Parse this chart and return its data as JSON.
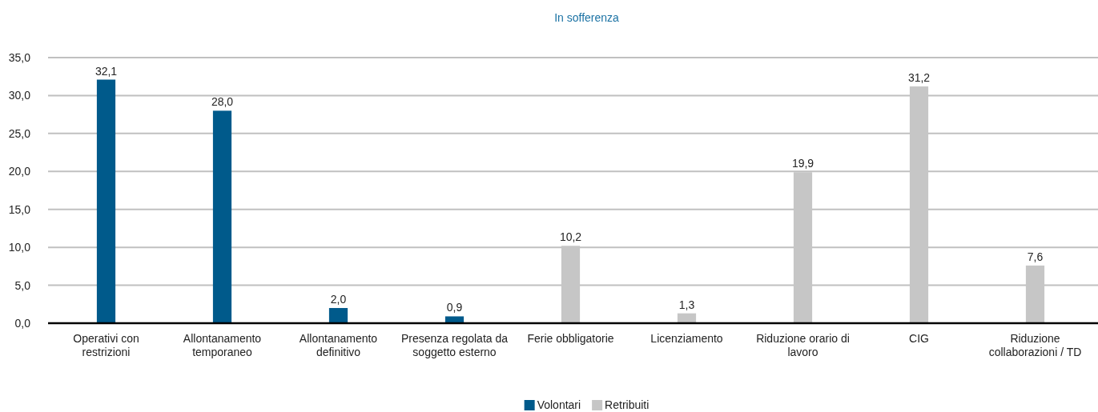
{
  "chart_data": {
    "type": "bar",
    "title": "In sofferenza",
    "categories": [
      "Operativi con restrizioni",
      "Allontanamento temporaneo",
      "Allontanamento definitivo",
      "Presenza regolata da soggetto esterno",
      "Ferie obbligatorie",
      "Licenziamento",
      "Riduzione orario di lavoro",
      "CIG",
      "Riduzione collaborazioni / TD"
    ],
    "series": [
      {
        "name": "Volontari",
        "color": "#005a8b",
        "values": [
          32.1,
          28.0,
          2.0,
          0.9,
          null,
          null,
          null,
          null,
          null
        ],
        "value_labels": [
          "32,1",
          "28,0",
          "2,0",
          "0,9",
          null,
          null,
          null,
          null,
          null
        ]
      },
      {
        "name": "Retribuiti",
        "color": "#c6c6c6",
        "values": [
          null,
          null,
          null,
          null,
          10.2,
          1.3,
          19.9,
          31.2,
          7.6
        ],
        "value_labels": [
          null,
          null,
          null,
          null,
          "10,2",
          "1,3",
          "19,9",
          "31,2",
          "7,6"
        ]
      }
    ],
    "stacked": true,
    "ylim": [
      0,
      35
    ],
    "yticks": [
      {
        "value": 0,
        "label": "0,0"
      },
      {
        "value": 5,
        "label": "5,0"
      },
      {
        "value": 10,
        "label": "10,0"
      },
      {
        "value": 15,
        "label": "15,0"
      },
      {
        "value": 20,
        "label": "20,0"
      },
      {
        "value": 25,
        "label": "25,0"
      },
      {
        "value": 30,
        "label": "30,0"
      },
      {
        "value": 35,
        "label": "35,0"
      }
    ],
    "grid": "y",
    "legend": "bottom"
  }
}
